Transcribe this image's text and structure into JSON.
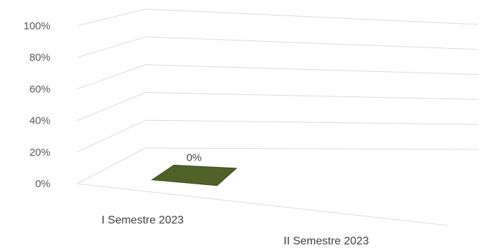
{
  "chart_data": {
    "type": "bar",
    "style": "3d-column",
    "title": "",
    "xlabel": "",
    "ylabel": "",
    "categories": [
      "I Semestre 2023",
      "II Semestre 2023"
    ],
    "series": [
      {
        "values": [
          0,
          null
        ],
        "data_labels": [
          "0%",
          ""
        ],
        "color": "#4f6228"
      }
    ],
    "ylim": [
      0,
      100
    ],
    "yticks": [
      "0%",
      "20%",
      "40%",
      "60%",
      "80%",
      "100%"
    ],
    "grid": true,
    "legend": "none"
  }
}
